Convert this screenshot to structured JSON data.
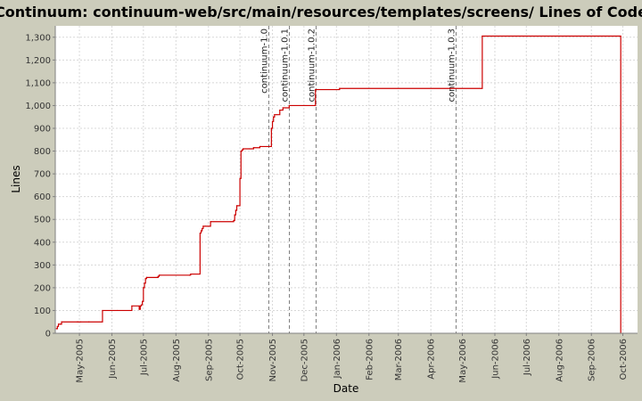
{
  "chart_data": {
    "type": "line",
    "title": "Continuum: continuum-web/src/main/resources/templates/screens/ Lines of Code",
    "xlabel": "Date",
    "ylabel": "Lines",
    "ylim": [
      0,
      1350
    ],
    "xlim": [
      "2005-04-08",
      "2006-10-15"
    ],
    "grid": true,
    "legend": "none",
    "step": true,
    "colors": {
      "background": "#ccccbb",
      "plot": "#ffffff",
      "line": "#cc0000",
      "grid": "#d8d8d8",
      "marker": "#808080"
    },
    "yticks": [
      0,
      100,
      200,
      300,
      400,
      500,
      600,
      700,
      800,
      900,
      1000,
      1100,
      1200,
      1300
    ],
    "ytick_labels": [
      "0",
      "100",
      "200",
      "300",
      "400",
      "500",
      "600",
      "700",
      "800",
      "900",
      "1,000",
      "1,100",
      "1,200",
      "1,300"
    ],
    "xticks": [
      "2005-05-01",
      "2005-06-01",
      "2005-07-01",
      "2005-08-01",
      "2005-09-01",
      "2005-10-01",
      "2005-11-01",
      "2005-12-01",
      "2006-01-01",
      "2006-02-01",
      "2006-03-01",
      "2006-04-01",
      "2006-05-01",
      "2006-06-01",
      "2006-07-01",
      "2006-08-01",
      "2006-09-01",
      "2006-10-01"
    ],
    "xtick_labels": [
      "May-2005",
      "Jun-2005",
      "Jul-2005",
      "Aug-2005",
      "Sep-2005",
      "Oct-2005",
      "Nov-2005",
      "Dec-2005",
      "Jan-2006",
      "Feb-2006",
      "Mar-2006",
      "Apr-2006",
      "May-2006",
      "Jun-2006",
      "Jul-2006",
      "Aug-2006",
      "Sep-2006",
      "Oct-2006"
    ],
    "markers": [
      {
        "label": "continuum-1.0",
        "x": "2005-10-28"
      },
      {
        "label": "continuum-1.0.1",
        "x": "2005-11-17"
      },
      {
        "label": "continuum-1.0.2",
        "x": "2005-12-12"
      },
      {
        "label": "continuum-1.0.3",
        "x": "2006-04-25"
      }
    ],
    "x": [
      "2005-04-09",
      "2005-04-10",
      "2005-04-11",
      "2005-04-13",
      "2005-04-14",
      "2005-04-29",
      "2005-04-30",
      "2005-05-02",
      "2005-05-10",
      "2005-05-23",
      "2005-06-06",
      "2005-06-20",
      "2005-06-27",
      "2005-06-28",
      "2005-06-29",
      "2005-06-30",
      "2005-07-01",
      "2005-07-02",
      "2005-07-03",
      "2005-07-04",
      "2005-07-14",
      "2005-07-15",
      "2005-07-16",
      "2005-07-17",
      "2005-08-14",
      "2005-08-15",
      "2005-08-24",
      "2005-08-25",
      "2005-08-26",
      "2005-08-27",
      "2005-08-29",
      "2005-09-03",
      "2005-09-25",
      "2005-09-26",
      "2005-09-27",
      "2005-09-28",
      "2005-10-01",
      "2005-10-02",
      "2005-10-03",
      "2005-10-04",
      "2005-10-10",
      "2005-10-14",
      "2005-10-20",
      "2005-10-21",
      "2005-10-31",
      "2005-11-01",
      "2005-11-02",
      "2005-11-03",
      "2005-11-05",
      "2005-11-08",
      "2005-11-11",
      "2005-11-17",
      "2005-12-12",
      "2006-01-04",
      "2006-05-20",
      "2006-09-28",
      "2006-09-29"
    ],
    "values": [
      20,
      30,
      40,
      40,
      50,
      50,
      50,
      50,
      50,
      100,
      100,
      120,
      105,
      120,
      125,
      140,
      200,
      220,
      240,
      245,
      245,
      250,
      255,
      255,
      255,
      260,
      440,
      450,
      460,
      470,
      470,
      490,
      495,
      520,
      540,
      560,
      680,
      800,
      805,
      810,
      810,
      815,
      820,
      820,
      900,
      930,
      950,
      960,
      960,
      980,
      990,
      1000,
      1070,
      1075,
      1305,
      1305,
      0
    ]
  }
}
